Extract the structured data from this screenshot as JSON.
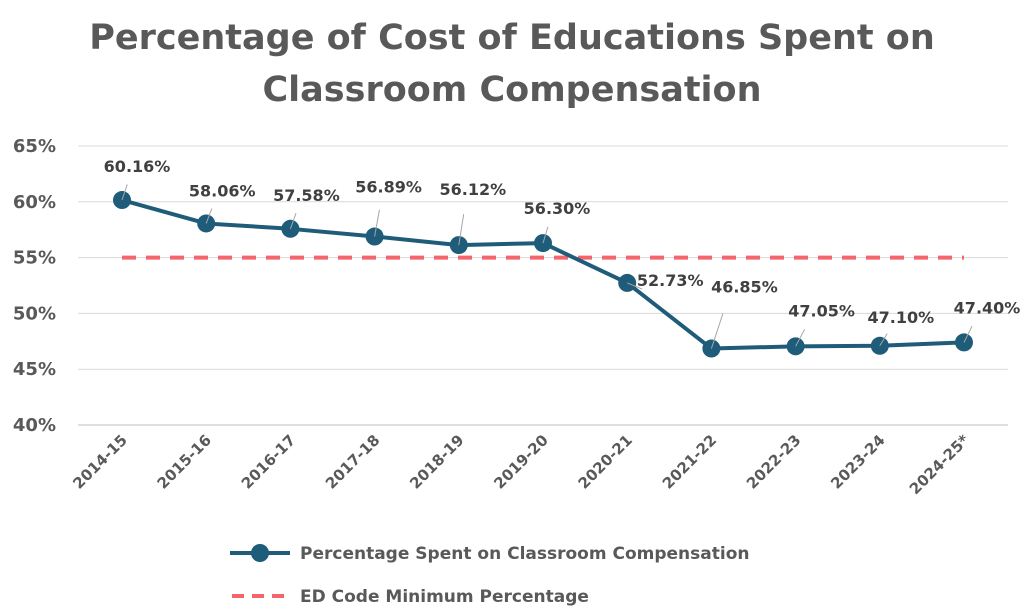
{
  "chart_data": {
    "type": "line",
    "title": "Percentage of Cost of Educations Spent on Classroom Compensation",
    "xlabel": "",
    "ylabel": "",
    "categories": [
      "2014-15",
      "2015-16",
      "2016-17",
      "2017-18",
      "2018-19",
      "2019-20",
      "2020-21",
      "2021-22",
      "2022-23",
      "2023-24",
      "2024-25*"
    ],
    "y_ticks": [
      "40%",
      "45%",
      "50%",
      "55%",
      "60%",
      "65%"
    ],
    "ylim": [
      40,
      65
    ],
    "grid": true,
    "legend_position": "bottom",
    "series": [
      {
        "name": "Percentage Spent on Classroom Compensation",
        "style": "solid-line-with-markers",
        "color": "#1f5c7a",
        "values": [
          60.16,
          58.06,
          57.58,
          56.89,
          56.12,
          56.3,
          52.73,
          46.85,
          47.05,
          47.1,
          47.4
        ],
        "labels": [
          "60.16%",
          "58.06%",
          "57.58%",
          "56.89%",
          "56.12%",
          "56.30%",
          "52.73%",
          "46.85%",
          "47.05%",
          "47.10%",
          "47.40%"
        ]
      },
      {
        "name": "ED Code Minimum Percentage",
        "style": "dashed-line",
        "color": "#f4646a",
        "values": [
          55,
          55,
          55,
          55,
          55,
          55,
          55,
          55,
          55,
          55,
          55
        ]
      }
    ]
  }
}
